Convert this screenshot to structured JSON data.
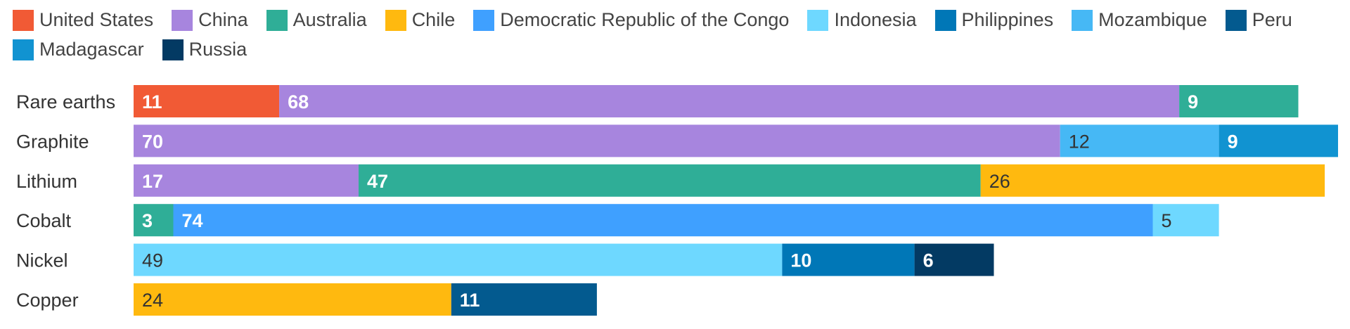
{
  "chart_data": {
    "type": "bar",
    "orientation": "horizontal",
    "stacked": true,
    "categories": [
      "Rare earths",
      "Graphite",
      "Lithium",
      "Cobalt",
      "Nickel",
      "Copper"
    ],
    "xlim": [
      0,
      91
    ],
    "grid": false,
    "legend_position": "top",
    "series": [
      {
        "name": "United States",
        "color": "#F15A35",
        "values": [
          11,
          null,
          null,
          null,
          null,
          null
        ]
      },
      {
        "name": "China",
        "color": "#A785DE",
        "values": [
          68,
          70,
          17,
          null,
          null,
          null
        ]
      },
      {
        "name": "Australia",
        "color": "#2FAE97",
        "values": [
          9,
          null,
          47,
          3,
          null,
          null
        ]
      },
      {
        "name": "Chile",
        "color": "#FFB90F",
        "values": [
          null,
          null,
          26,
          null,
          null,
          24
        ]
      },
      {
        "name": "Democratic Republic of the Congo",
        "color": "#3FA0FF",
        "values": [
          null,
          null,
          null,
          74,
          null,
          null
        ]
      },
      {
        "name": "Indonesia",
        "color": "#6ED8FF",
        "values": [
          null,
          null,
          null,
          5,
          49,
          null
        ]
      },
      {
        "name": "Philippines",
        "color": "#0077B7",
        "values": [
          null,
          null,
          null,
          null,
          10,
          null
        ]
      },
      {
        "name": "Mozambique",
        "color": "#46B8F5",
        "values": [
          null,
          12,
          null,
          null,
          null,
          null
        ]
      },
      {
        "name": "Peru",
        "color": "#035A8F",
        "values": [
          null,
          null,
          null,
          null,
          null,
          11
        ]
      },
      {
        "name": "Madagascar",
        "color": "#1193D1",
        "values": [
          null,
          9,
          null,
          null,
          null,
          null
        ]
      },
      {
        "name": "Russia",
        "color": "#033A63",
        "values": [
          null,
          null,
          null,
          null,
          6,
          null
        ]
      }
    ],
    "stack_order": [
      [
        "United States",
        "China",
        "Australia"
      ],
      [
        "China",
        "Mozambique",
        "Madagascar"
      ],
      [
        "China",
        "Australia",
        "Chile"
      ],
      [
        "Australia",
        "Democratic Republic of the Congo",
        "Indonesia"
      ],
      [
        "Indonesia",
        "Philippines",
        "Russia"
      ],
      [
        "Chile",
        "Democratic Republic of the Congo",
        "Peru"
      ]
    ],
    "dark_label_series": [
      "Chile",
      "Indonesia",
      "Mozambique"
    ]
  }
}
